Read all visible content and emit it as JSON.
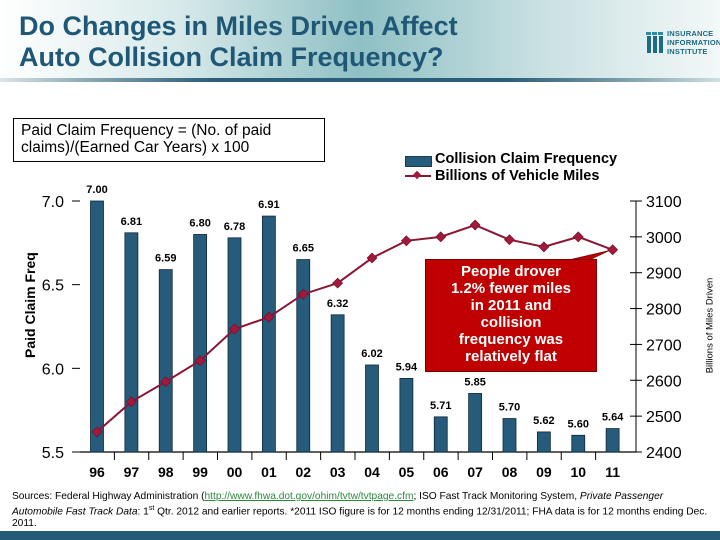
{
  "header": {
    "title_line1": "Do Changes in Miles Driven Affect",
    "title_line2": "Auto Collision Claim Frequency?",
    "logo_lines": [
      "INSURANCE",
      "INFORMATION",
      "INSTITUTE"
    ]
  },
  "formula": {
    "line1": "Paid Claim Frequency = (No. of paid",
    "line2": "claims)/(Earned Car Years) x 100"
  },
  "callout": {
    "lines": [
      "People drover",
      "1.2% fewer miles",
      "in 2011 and",
      "collision",
      "frequency was",
      "relatively flat"
    ]
  },
  "sources": {
    "prefix": "Sources: Federal Highway Administration (",
    "link": "http://www.fhwa.dot.gov/ohim/tvtw/tvtpage.cfm",
    "after_link": ";  ISO Fast Track Monitoring System, ",
    "italic": "Private Passenger Automobile Fast Track Data",
    "middle": ": 1",
    "superscript": "st",
    "rest": " Qtr. 2012 and earlier reports.  *2011 ISO figure is for 12 months ending 12/31/2011; FHA data is for 12 months ending Dec. 2011."
  },
  "colors": {
    "bar": "#265b7b",
    "line": "#8a1734",
    "marker": "#a4183c",
    "callout": "#c00000",
    "title": "#1f5876"
  },
  "chart_data": {
    "type": "bar+line",
    "title": "Do Changes in Miles Driven Affect Auto Collision Claim Frequency?",
    "categories": [
      "96",
      "97",
      "98",
      "99",
      "00",
      "01",
      "02",
      "03",
      "04",
      "05",
      "06",
      "07",
      "08",
      "09",
      "10",
      "11"
    ],
    "series": [
      {
        "name": "Collision Claim Frequency",
        "type": "bar",
        "axis": "left",
        "values": [
          7.0,
          6.81,
          6.59,
          6.8,
          6.78,
          6.91,
          6.65,
          6.32,
          6.02,
          5.94,
          5.71,
          5.85,
          5.7,
          5.62,
          5.6,
          5.64
        ],
        "labels": [
          "7.00",
          "6.81",
          "6.59",
          "6.80",
          "6.78",
          "6.91",
          "6.65",
          "6.32",
          "6.02",
          "5.94",
          "5.71",
          "5.85",
          "5.70",
          "5.62",
          "5.60",
          "5.64"
        ]
      },
      {
        "name": "Billions of Vehicle Miles",
        "type": "line",
        "axis": "right",
        "marker": "diamond",
        "values": [
          2456,
          2540,
          2596,
          2655,
          2743,
          2776,
          2840,
          2871,
          2941,
          2989,
          3000,
          3033,
          2992,
          2972,
          3000,
          2964
        ]
      }
    ],
    "ylabel": "Paid Claim Freq",
    "ylim": [
      5.5,
      7.0
    ],
    "yticks": [
      "5.5",
      "6.0",
      "6.5",
      "7.0"
    ],
    "y2label": "Billions of Miles Driven",
    "y2lim": [
      2400,
      3100
    ],
    "y2ticks": [
      "2400",
      "2500",
      "2600",
      "2700",
      "2800",
      "2900",
      "3000",
      "3100"
    ],
    "xlabel": "",
    "grid": false,
    "legend": "top-right"
  }
}
